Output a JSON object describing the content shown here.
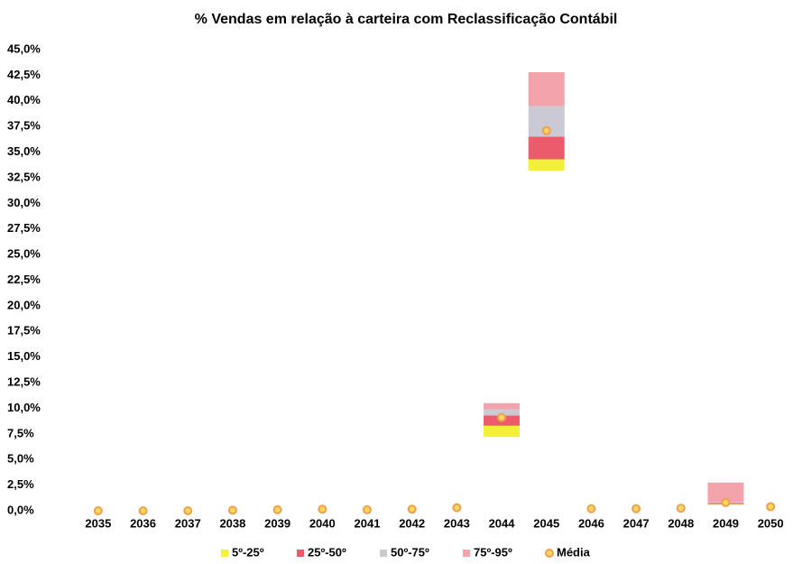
{
  "chart_data": {
    "type": "bar",
    "stacked": true,
    "title": "% Vendas em relação à carteira com Reclassificação Contábil",
    "categories": [
      "2035",
      "2036",
      "2037",
      "2038",
      "2039",
      "2040",
      "2041",
      "2042",
      "2043",
      "2044",
      "2045",
      "2046",
      "2047",
      "2048",
      "2049",
      "2050"
    ],
    "low": [
      0,
      0,
      0,
      0,
      0,
      0,
      0,
      0,
      0,
      7.2,
      33.2,
      0,
      0,
      0,
      0.6,
      0
    ],
    "series": [
      {
        "name": "5º-25º",
        "color": "#f4f03a",
        "values": [
          0,
          0,
          0,
          0,
          0,
          0,
          0,
          0,
          0,
          1.1,
          1.1,
          0,
          0,
          0,
          0.05,
          0
        ]
      },
      {
        "name": "25º-50º",
        "color": "#ec5b6b",
        "values": [
          0,
          0,
          0,
          0,
          0,
          0,
          0,
          0,
          0,
          1.0,
          2.2,
          0,
          0,
          0,
          0.1,
          0
        ]
      },
      {
        "name": "50º-75º",
        "color": "#cbc9d4",
        "values": [
          0,
          0,
          0,
          0,
          0,
          0,
          0,
          0,
          0,
          0.6,
          3.0,
          0,
          0,
          0,
          0.1,
          0
        ]
      },
      {
        "name": "75º-95º",
        "color": "#f3a3ab",
        "values": [
          0,
          0,
          0,
          0,
          0,
          0,
          0,
          0,
          0,
          0.6,
          3.3,
          0,
          0,
          0,
          1.9,
          0
        ]
      }
    ],
    "mean": {
      "name": "Média",
      "color": "#f0a04b",
      "values": [
        0,
        0,
        0,
        0.05,
        0.1,
        0.15,
        0.1,
        0.15,
        0.3,
        9.1,
        37.1,
        0.2,
        0.2,
        0.25,
        0.8,
        0.4
      ]
    },
    "ylim": [
      0,
      45
    ],
    "yticks": [
      {
        "value": 0,
        "label": "0,0%"
      },
      {
        "value": 2.5,
        "label": "2,5%"
      },
      {
        "value": 5,
        "label": "5,0%"
      },
      {
        "value": 7.5,
        "label": "7,5%"
      },
      {
        "value": 10,
        "label": "10,0%"
      },
      {
        "value": 12.5,
        "label": "12,5%"
      },
      {
        "value": 15,
        "label": "15,0%"
      },
      {
        "value": 17.5,
        "label": "17,5%"
      },
      {
        "value": 20,
        "label": "20,0%"
      },
      {
        "value": 22.5,
        "label": "22,5%"
      },
      {
        "value": 25,
        "label": "25,0%"
      },
      {
        "value": 27.5,
        "label": "27,5%"
      },
      {
        "value": 30,
        "label": "30,0%"
      },
      {
        "value": 32.5,
        "label": "32,5%"
      },
      {
        "value": 35,
        "label": "35,0%"
      },
      {
        "value": 37.5,
        "label": "37,5%"
      },
      {
        "value": 40,
        "label": "40,0%"
      },
      {
        "value": 42.5,
        "label": "42,5%"
      },
      {
        "value": 45,
        "label": "45,0%"
      }
    ],
    "grid": false,
    "legend": "bottom"
  }
}
